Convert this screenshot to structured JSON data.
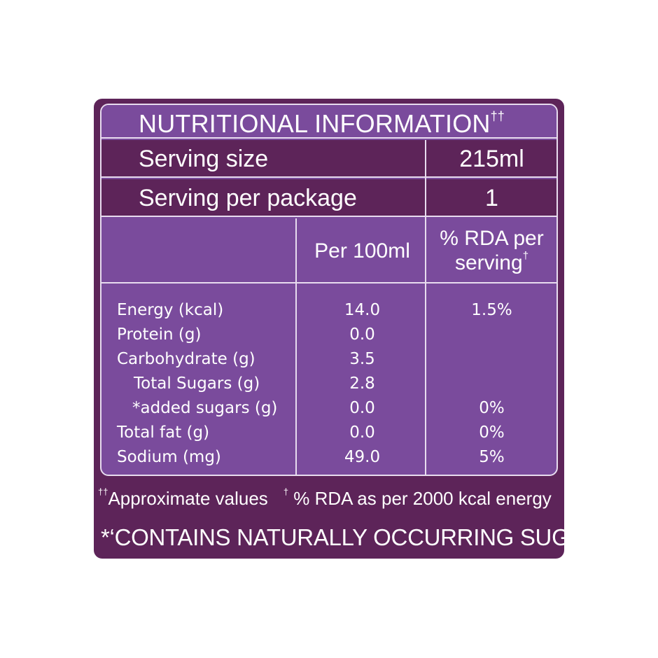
{
  "title": {
    "text": "NUTRITIONAL INFORMATION",
    "mark": "††"
  },
  "serving": {
    "size_label": "Serving size",
    "size_value": "215ml",
    "per_package_label": "Serving per package",
    "per_package_value": "1"
  },
  "columns": {
    "per_100ml": "Per 100ml",
    "rda_line1": "% RDA per",
    "rda_line2": "serving",
    "rda_mark": "†"
  },
  "nutrients": [
    {
      "label": "Energy (kcal)",
      "per_100ml": "14.0",
      "rda": "1.5%"
    },
    {
      "label": "Protein (g)",
      "per_100ml": "0.0",
      "rda": ""
    },
    {
      "label": "Carbohydrate (g)",
      "per_100ml": "3.5",
      "rda": ""
    },
    {
      "label": "Total Sugars (g)",
      "per_100ml": "2.8",
      "rda": ""
    },
    {
      "label": "*added sugars (g)",
      "per_100ml": "0.0",
      "rda": "0%"
    },
    {
      "label": "Total fat (g)",
      "per_100ml": "0.0",
      "rda": "0%"
    },
    {
      "label": "Sodium (mg)",
      "per_100ml": "49.0",
      "rda": "5%"
    }
  ],
  "footnote": {
    "mark1": "††",
    "text1": "Approximate values",
    "mark2": "†",
    "text2": " % RDA as per 2000 kcal energy"
  },
  "claim": "*‘CONTAINS NATURALLY OCCURRING SUGARS’",
  "colors": {
    "panel": "#5d2459",
    "light_row": "#7a4b9c",
    "border": "#e8dcef",
    "text": "#ffffff"
  }
}
